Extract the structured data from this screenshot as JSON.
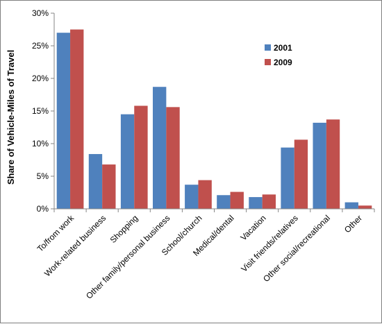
{
  "chart_data": {
    "type": "bar",
    "title": "",
    "xlabel": "",
    "ylabel": "Share of Vehicle-Miles of Travel",
    "ylim": [
      0,
      30
    ],
    "yticks": [
      "0%",
      "5%",
      "10%",
      "15%",
      "20%",
      "25%",
      "30%"
    ],
    "ytick_values": [
      0,
      5,
      10,
      15,
      20,
      25,
      30
    ],
    "grid": false,
    "legend_position": "top-right",
    "categories": [
      "To/from work",
      "Work-related business",
      "Shopping",
      "Other family/personal business",
      "School/church",
      "Medical/dental",
      "Vacation",
      "Visit friends/relatives",
      "Other social/recreational",
      "Other"
    ],
    "series": [
      {
        "name": "2001",
        "color": "#4f81bd",
        "values": [
          27.0,
          8.4,
          14.5,
          18.7,
          3.7,
          2.1,
          1.8,
          9.4,
          13.2,
          1.0
        ]
      },
      {
        "name": "2009",
        "color": "#c0504d",
        "values": [
          27.5,
          6.8,
          15.8,
          15.6,
          4.4,
          2.6,
          2.2,
          10.6,
          13.7,
          0.5
        ]
      }
    ]
  }
}
